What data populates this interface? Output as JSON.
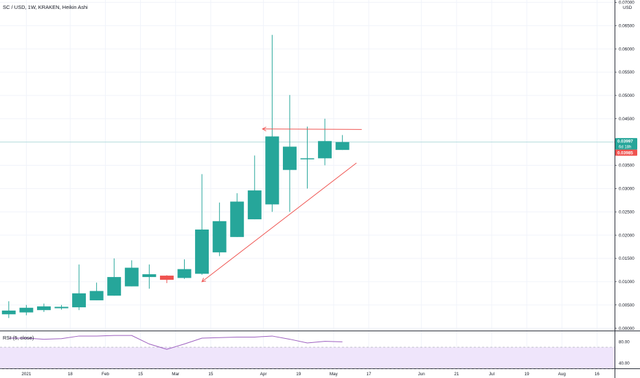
{
  "header": {
    "title": "SC / USD, 1W, KRAKEN, Heikin Ashi",
    "currency": "USD"
  },
  "colors": {
    "up": "#26a69a",
    "down": "#ef5350",
    "annotation": "#ef5350",
    "rsi_line": "#9c5ebf",
    "rsi_band": "#e9ddfb",
    "price_line": "#26a69a"
  },
  "chart_data": {
    "type": "candlestick",
    "style": "Heikin Ashi",
    "symbol": "SC / USD",
    "interval": "1W",
    "exchange": "KRAKEN",
    "y_axis": {
      "side": "right",
      "range": [
        -0.0005,
        0.0705
      ],
      "ticks": [
        "0.00000",
        "0.00500",
        "0.01000",
        "0.01500",
        "0.02000",
        "0.02500",
        "0.03000",
        "0.03500",
        "0.04000",
        "0.04500",
        "0.05000",
        "0.05500",
        "0.06000",
        "0.06500",
        "0.07000"
      ]
    },
    "x_axis": {
      "week_range": [
        -0.5,
        34.5
      ],
      "tick_labels": [
        {
          "label": "2021",
          "week": 1
        },
        {
          "label": "18",
          "week": 3.5
        },
        {
          "label": "Feb",
          "week": 5.5
        },
        {
          "label": "15",
          "week": 7.5
        },
        {
          "label": "Mar",
          "week": 9.5
        },
        {
          "label": "15",
          "week": 11.5
        },
        {
          "label": "Apr",
          "week": 14.5
        },
        {
          "label": "19",
          "week": 16.5
        },
        {
          "label": "May",
          "week": 18.5
        },
        {
          "label": "17",
          "week": 20.5
        },
        {
          "label": "Jun",
          "week": 23.5
        },
        {
          "label": "21",
          "week": 25.5
        },
        {
          "label": "Jul",
          "week": 27.5
        },
        {
          "label": "19",
          "week": 29.5
        },
        {
          "label": "Aug",
          "week": 31.5
        },
        {
          "label": "16",
          "week": 33.5
        }
      ]
    },
    "candles": [
      {
        "week": 0,
        "open": 0.003,
        "high": 0.0058,
        "low": 0.0022,
        "close": 0.0038
      },
      {
        "week": 1,
        "open": 0.0034,
        "high": 0.005,
        "low": 0.0028,
        "close": 0.0044
      },
      {
        "week": 2,
        "open": 0.0039,
        "high": 0.0053,
        "low": 0.0035,
        "close": 0.0047
      },
      {
        "week": 3,
        "open": 0.0043,
        "high": 0.005,
        "low": 0.004,
        "close": 0.0046
      },
      {
        "week": 4,
        "open": 0.0045,
        "high": 0.0137,
        "low": 0.0039,
        "close": 0.0075
      },
      {
        "week": 5,
        "open": 0.006,
        "high": 0.0098,
        "low": 0.006,
        "close": 0.008
      },
      {
        "week": 6,
        "open": 0.007,
        "high": 0.015,
        "low": 0.007,
        "close": 0.011
      },
      {
        "week": 7,
        "open": 0.009,
        "high": 0.0146,
        "low": 0.009,
        "close": 0.013
      },
      {
        "week": 8,
        "open": 0.011,
        "high": 0.0137,
        "low": 0.0085,
        "close": 0.0116
      },
      {
        "week": 9,
        "open": 0.0113,
        "high": 0.0114,
        "low": 0.0097,
        "close": 0.0104
      },
      {
        "week": 10,
        "open": 0.0108,
        "high": 0.0148,
        "low": 0.0106,
        "close": 0.0127
      },
      {
        "week": 11,
        "open": 0.0117,
        "high": 0.0331,
        "low": 0.0115,
        "close": 0.0212
      },
      {
        "week": 12,
        "open": 0.0163,
        "high": 0.027,
        "low": 0.0155,
        "close": 0.023
      },
      {
        "week": 13,
        "open": 0.0196,
        "high": 0.029,
        "low": 0.0196,
        "close": 0.0272
      },
      {
        "week": 14,
        "open": 0.0234,
        "high": 0.0371,
        "low": 0.0234,
        "close": 0.0296
      },
      {
        "week": 15,
        "open": 0.0266,
        "high": 0.063,
        "low": 0.025,
        "close": 0.0412
      },
      {
        "week": 16,
        "open": 0.034,
        "high": 0.0501,
        "low": 0.025,
        "close": 0.039
      },
      {
        "week": 17,
        "open": 0.0363,
        "high": 0.0433,
        "low": 0.03,
        "close": 0.0365
      },
      {
        "week": 18,
        "open": 0.0365,
        "high": 0.045,
        "low": 0.035,
        "close": 0.0402
      },
      {
        "week": 19,
        "open": 0.0383,
        "high": 0.0415,
        "low": 0.0383,
        "close": 0.04
      }
    ],
    "last_price": {
      "value": 0.03997,
      "label": "0.03997",
      "countdown": "6d 18h"
    },
    "ask_price": {
      "value": 0.03985,
      "label": "0.03985"
    },
    "annotations": [
      {
        "type": "arrow-line",
        "from": {
          "week": 20.1,
          "price": 0.0427
        },
        "to": {
          "week": 14.45,
          "price": 0.0428
        }
      },
      {
        "type": "arrow-line",
        "from": {
          "week": 19.8,
          "price": 0.0355
        },
        "to": {
          "week": 11.0,
          "price": 0.01
        }
      }
    ],
    "rsi": {
      "label": "RSI (5, close)",
      "ylim": [
        30,
        100
      ],
      "levels": [
        70,
        30
      ],
      "tick_labels": [
        "80.00",
        "40.00"
      ],
      "points": [
        {
          "week": 0,
          "value": 87
        },
        {
          "week": 1,
          "value": 87
        },
        {
          "week": 2,
          "value": 85
        },
        {
          "week": 3,
          "value": 86
        },
        {
          "week": 4,
          "value": 91
        },
        {
          "week": 5,
          "value": 91
        },
        {
          "week": 6,
          "value": 92
        },
        {
          "week": 7,
          "value": 92
        },
        {
          "week": 8,
          "value": 76
        },
        {
          "week": 9,
          "value": 66
        },
        {
          "week": 10,
          "value": 76
        },
        {
          "week": 11,
          "value": 87
        },
        {
          "week": 12,
          "value": 88
        },
        {
          "week": 13,
          "value": 89
        },
        {
          "week": 14,
          "value": 89
        },
        {
          "week": 15,
          "value": 91
        },
        {
          "week": 16,
          "value": 85
        },
        {
          "week": 17,
          "value": 78
        },
        {
          "week": 18,
          "value": 81
        },
        {
          "week": 19,
          "value": 80
        }
      ]
    }
  }
}
